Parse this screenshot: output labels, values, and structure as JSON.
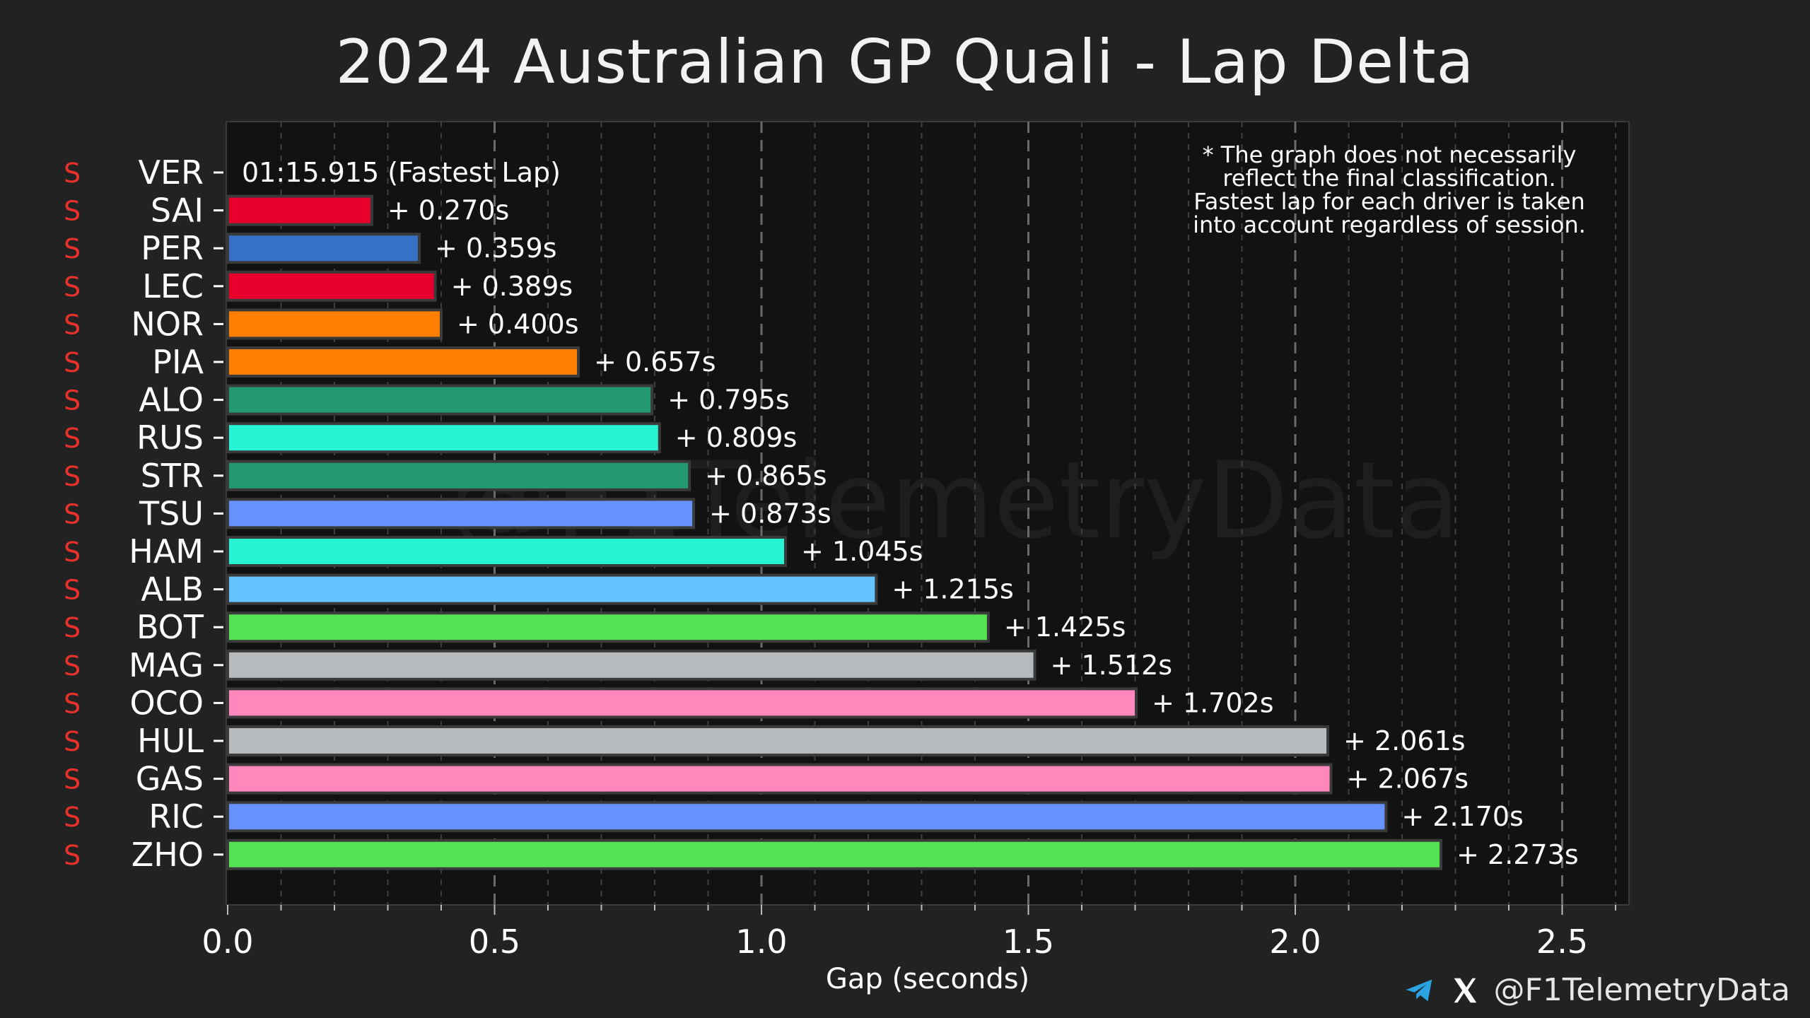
{
  "chart_data": {
    "type": "bar",
    "orientation": "horizontal",
    "title": "2024 Australian GP Quali - Lap Delta",
    "xlabel": "Gap (seconds)",
    "ylabel": "",
    "xlim": [
      0,
      2.62
    ],
    "xticks": [
      {
        "value": 0.0,
        "label": "0.0"
      },
      {
        "value": 0.5,
        "label": "0.5"
      },
      {
        "value": 1.0,
        "label": "1.0"
      },
      {
        "value": 1.5,
        "label": "1.5"
      },
      {
        "value": 2.0,
        "label": "2.0"
      },
      {
        "value": 2.5,
        "label": "2.5"
      }
    ],
    "fastest_lap_label": "01:15.915 (Fastest Lap)",
    "drivers": [
      {
        "driver": "VER",
        "tyre": "S",
        "gap": 0.0,
        "label": "",
        "color": "#3671c6"
      },
      {
        "driver": "SAI",
        "tyre": "S",
        "gap": 0.27,
        "label": "+ 0.270s",
        "color": "#e8002d"
      },
      {
        "driver": "PER",
        "tyre": "S",
        "gap": 0.359,
        "label": "+ 0.359s",
        "color": "#3671c6"
      },
      {
        "driver": "LEC",
        "tyre": "S",
        "gap": 0.389,
        "label": "+ 0.389s",
        "color": "#e8002d"
      },
      {
        "driver": "NOR",
        "tyre": "S",
        "gap": 0.4,
        "label": "+ 0.400s",
        "color": "#ff8000"
      },
      {
        "driver": "PIA",
        "tyre": "S",
        "gap": 0.657,
        "label": "+ 0.657s",
        "color": "#ff8000"
      },
      {
        "driver": "ALO",
        "tyre": "S",
        "gap": 0.795,
        "label": "+ 0.795s",
        "color": "#229971"
      },
      {
        "driver": "RUS",
        "tyre": "S",
        "gap": 0.809,
        "label": "+ 0.809s",
        "color": "#27f4d2"
      },
      {
        "driver": "STR",
        "tyre": "S",
        "gap": 0.865,
        "label": "+ 0.865s",
        "color": "#229971"
      },
      {
        "driver": "TSU",
        "tyre": "S",
        "gap": 0.873,
        "label": "+ 0.873s",
        "color": "#6692ff"
      },
      {
        "driver": "HAM",
        "tyre": "S",
        "gap": 1.045,
        "label": "+ 1.045s",
        "color": "#27f4d2"
      },
      {
        "driver": "ALB",
        "tyre": "S",
        "gap": 1.215,
        "label": "+ 1.215s",
        "color": "#64c4ff"
      },
      {
        "driver": "BOT",
        "tyre": "S",
        "gap": 1.425,
        "label": "+ 1.425s",
        "color": "#52e252"
      },
      {
        "driver": "MAG",
        "tyre": "S",
        "gap": 1.512,
        "label": "+ 1.512s",
        "color": "#b6babd"
      },
      {
        "driver": "OCO",
        "tyre": "S",
        "gap": 1.702,
        "label": "+ 1.702s",
        "color": "#ff87bc"
      },
      {
        "driver": "HUL",
        "tyre": "S",
        "gap": 2.061,
        "label": "+ 2.061s",
        "color": "#b6babd"
      },
      {
        "driver": "GAS",
        "tyre": "S",
        "gap": 2.067,
        "label": "+ 2.067s",
        "color": "#ff87bc"
      },
      {
        "driver": "RIC",
        "tyre": "S",
        "gap": 2.17,
        "label": "+ 2.170s",
        "color": "#6692ff"
      },
      {
        "driver": "ZHO",
        "tyre": "S",
        "gap": 2.273,
        "label": "+ 2.273s",
        "color": "#52e252"
      }
    ],
    "note": [
      "* The graph does not necessarily",
      "reflect the final classification.",
      "Fastest lap for each driver is taken",
      "into account regardless of session."
    ],
    "watermark": "@F1TelemetryData"
  },
  "footer": {
    "handle": "@F1TelemetryData",
    "icons": [
      "telegram-icon",
      "x-icon"
    ]
  },
  "colors": {
    "background": "#222222",
    "plot_background": "#121212",
    "grid": "#5a5a5a",
    "tyre_soft": "#e8312a"
  }
}
